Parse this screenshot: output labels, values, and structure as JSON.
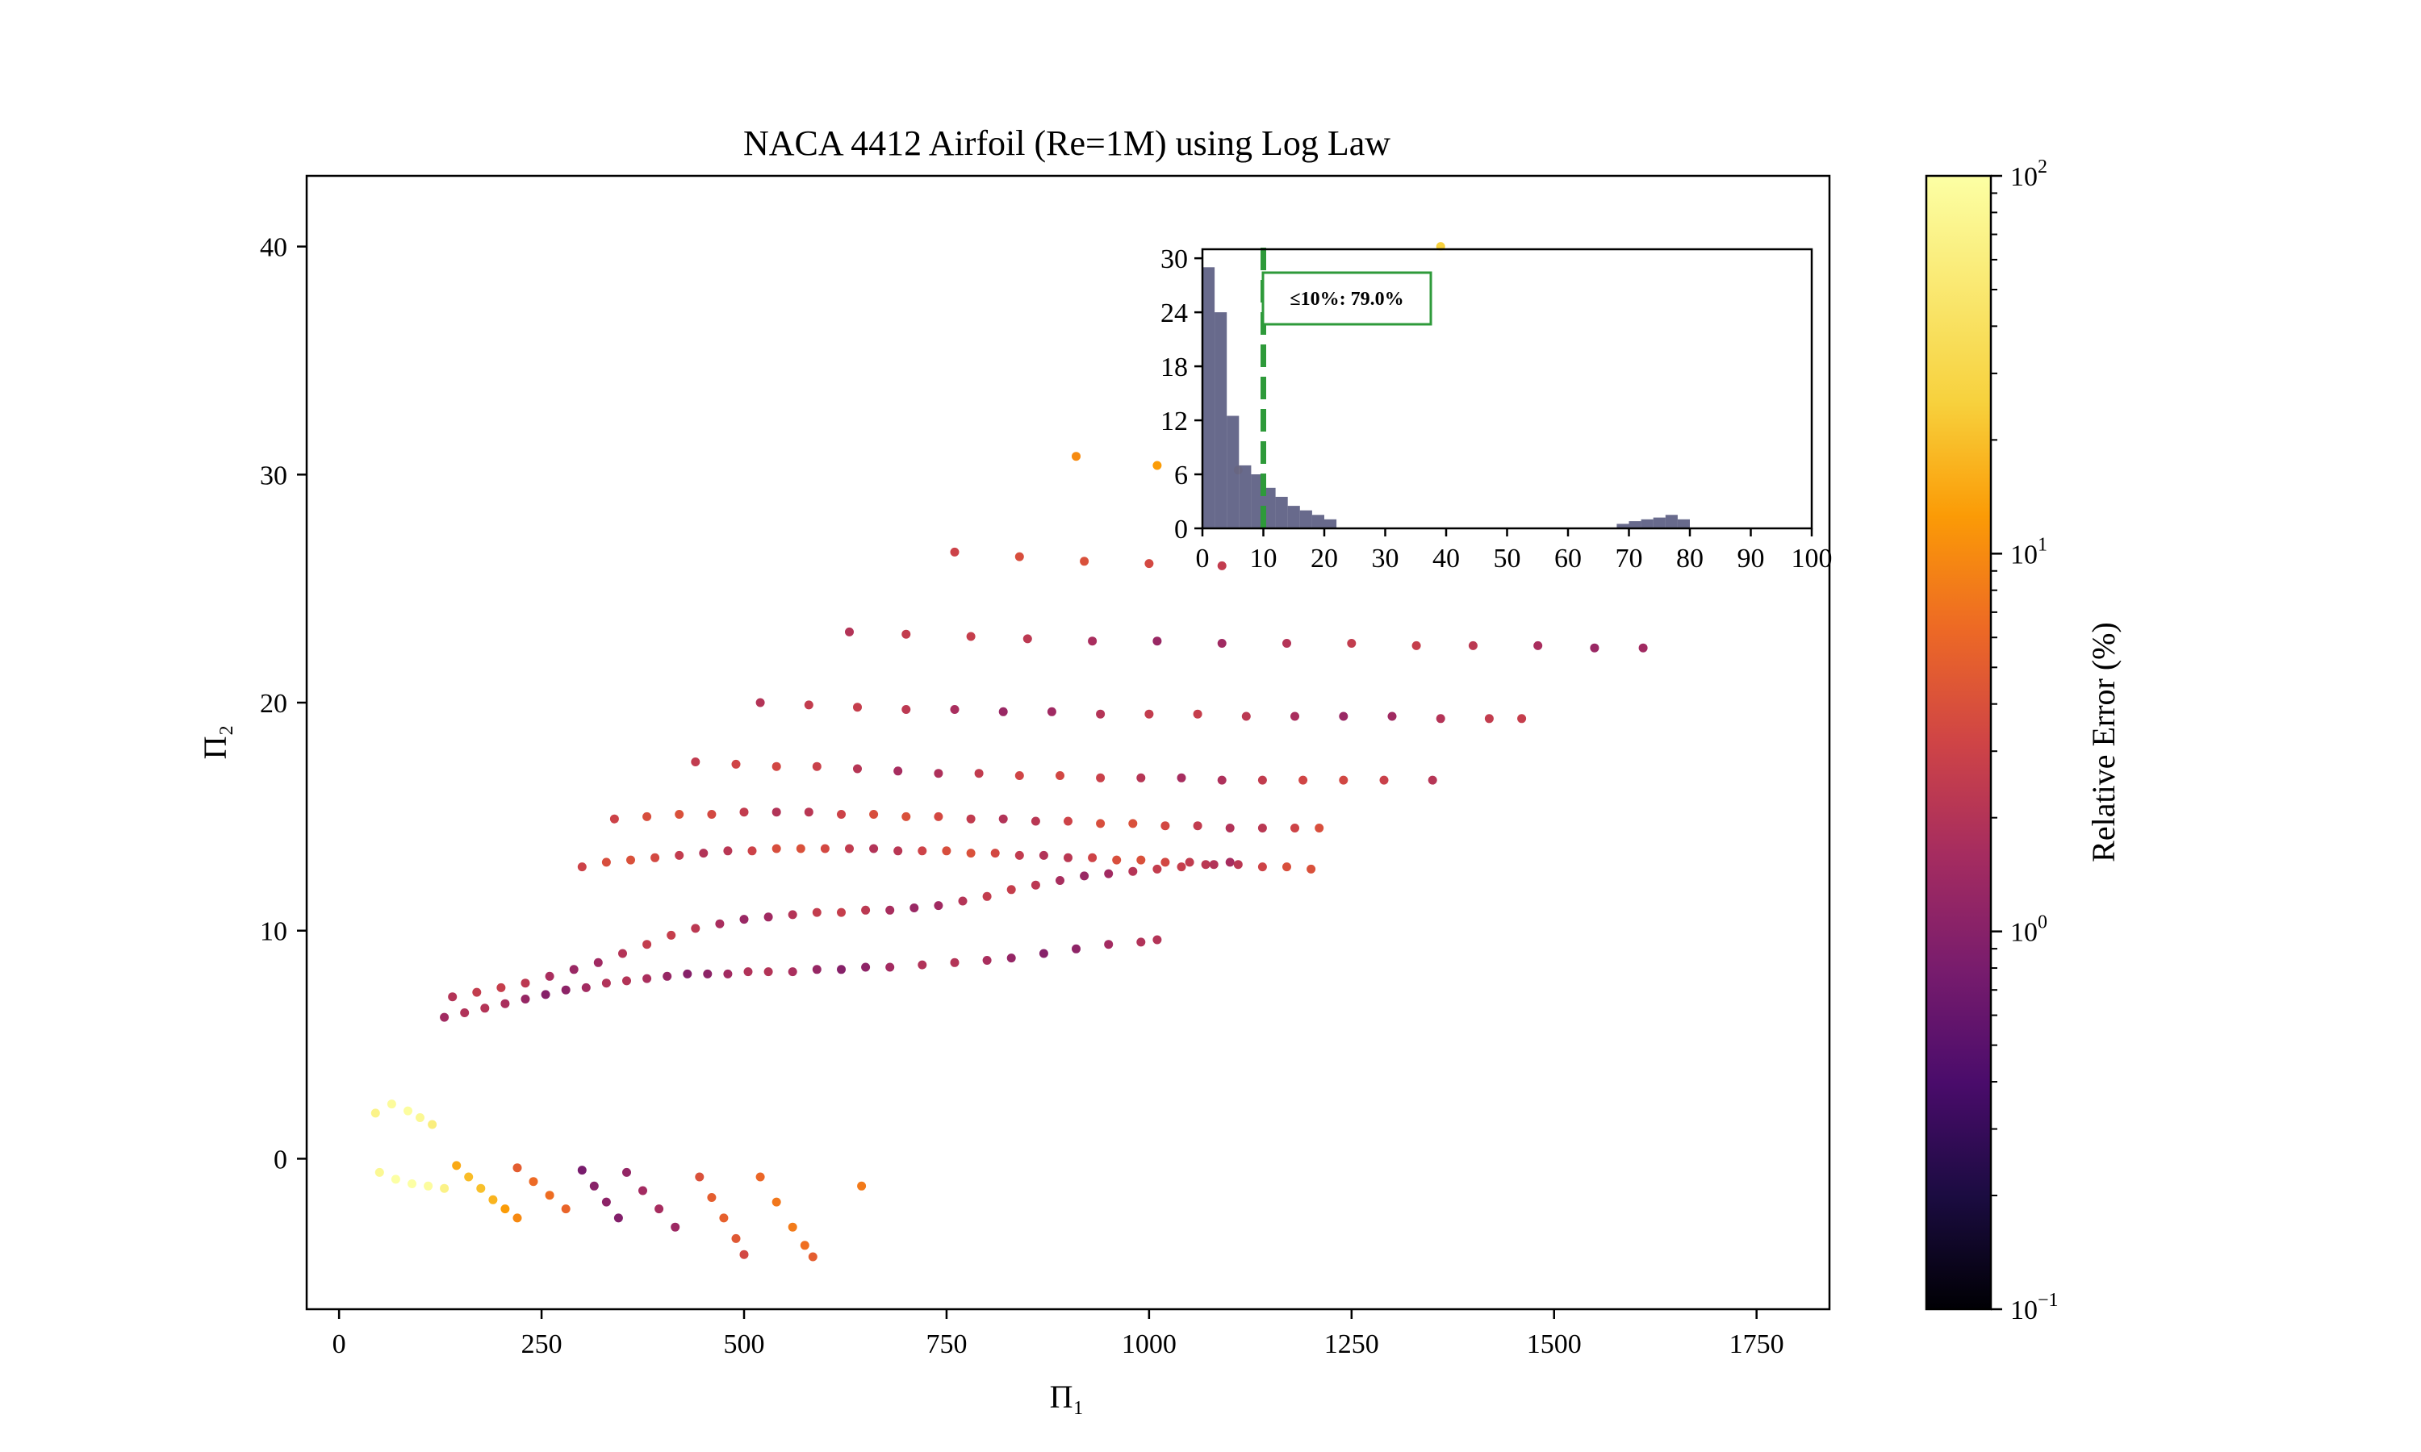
{
  "chart_data": [
    {
      "type": "scatter",
      "title": "NACA 4412 Airfoil (Re=1M) using Log Law",
      "xlabel": "Π₁",
      "ylabel": "Π₂",
      "xlim": [
        -40,
        1840
      ],
      "ylim": [
        -6.6,
        43.1
      ],
      "xticks": [
        0,
        250,
        500,
        750,
        1000,
        1250,
        1500,
        1750
      ],
      "yticks": [
        0,
        10,
        20,
        30,
        40
      ],
      "color_scale": "log",
      "colormap": "inferno",
      "colorbar": {
        "label": "Relative Error (%)",
        "range": [
          0.1,
          100
        ],
        "ticks": [
          {
            "base": "10",
            "exp": "−1",
            "value": 0.1
          },
          {
            "base": "10",
            "exp": "0",
            "value": 1
          },
          {
            "base": "10",
            "exp": "1",
            "value": 10
          },
          {
            "base": "10",
            "exp": "2",
            "value": 100
          }
        ]
      },
      "families": [
        {
          "x": [
            45,
            65,
            85,
            100,
            115
          ],
          "y": [
            2.0,
            2.4,
            2.1,
            1.8,
            1.5
          ],
          "err": 70
        },
        {
          "x": [
            50,
            70,
            90,
            110,
            130
          ],
          "y": [
            -0.6,
            -0.9,
            -1.1,
            -1.2,
            -1.3
          ],
          "err": 80
        },
        {
          "x": [
            145,
            160,
            175,
            190,
            205,
            220
          ],
          "y": [
            -0.3,
            -0.8,
            -1.3,
            -1.8,
            -2.2,
            -2.6
          ],
          "err": 15
        },
        {
          "x": [
            220,
            240,
            260,
            280
          ],
          "y": [
            -0.4,
            -1.0,
            -1.6,
            -2.2
          ],
          "err": 5
        },
        {
          "x": [
            300,
            315,
            330,
            345
          ],
          "y": [
            -0.5,
            -1.2,
            -1.9,
            -2.6
          ],
          "err": 0.8
        },
        {
          "x": [
            355,
            375,
            395,
            415
          ],
          "y": [
            -0.6,
            -1.4,
            -2.2,
            -3.0
          ],
          "err": 1.2
        },
        {
          "x": [
            445,
            460,
            475,
            490,
            500
          ],
          "y": [
            -0.8,
            -1.7,
            -2.6,
            -3.5,
            -4.2
          ],
          "err": 4
        },
        {
          "x": [
            520,
            540,
            560,
            575,
            585
          ],
          "y": [
            -0.8,
            -1.9,
            -3.0,
            -3.8,
            -4.3
          ],
          "err": 6
        },
        {
          "x": [
            645
          ],
          "y": [
            -1.2
          ],
          "err": 8
        },
        {
          "x": [
            140,
            170,
            200,
            230,
            260,
            290,
            320,
            350,
            380,
            410,
            440,
            470,
            500,
            530,
            560,
            590,
            620,
            650,
            680,
            710,
            740,
            770,
            800,
            830,
            860,
            890,
            920,
            950,
            980,
            1010,
            1040,
            1070,
            1100
          ],
          "y": [
            7.1,
            7.3,
            7.5,
            7.7,
            8.0,
            8.3,
            8.6,
            9.0,
            9.4,
            9.8,
            10.1,
            10.3,
            10.5,
            10.6,
            10.7,
            10.8,
            10.8,
            10.9,
            10.9,
            11.0,
            11.1,
            11.3,
            11.5,
            11.8,
            12.0,
            12.2,
            12.4,
            12.5,
            12.6,
            12.7,
            12.8,
            12.9,
            13.0
          ],
          "err": 2
        },
        {
          "x": [
            300,
            330,
            360,
            390,
            420,
            450,
            480,
            510,
            540,
            570,
            600,
            630,
            660,
            690,
            720,
            750,
            780,
            810,
            840,
            870,
            900,
            930,
            960,
            990,
            1020,
            1050,
            1080,
            1110,
            1140,
            1170,
            1200
          ],
          "y": [
            12.8,
            13.0,
            13.1,
            13.2,
            13.3,
            13.4,
            13.5,
            13.5,
            13.6,
            13.6,
            13.6,
            13.6,
            13.6,
            13.5,
            13.5,
            13.5,
            13.4,
            13.4,
            13.3,
            13.3,
            13.2,
            13.2,
            13.1,
            13.1,
            13.0,
            13.0,
            12.9,
            12.9,
            12.8,
            12.8,
            12.7
          ],
          "err": 3
        },
        {
          "x": [
            340,
            380,
            420,
            460,
            500,
            540,
            580,
            620,
            660,
            700,
            740,
            780,
            820,
            860,
            900,
            940,
            980,
            1020,
            1060,
            1100,
            1140,
            1180,
            1210
          ],
          "y": [
            14.9,
            15.0,
            15.1,
            15.1,
            15.2,
            15.2,
            15.2,
            15.1,
            15.1,
            15.0,
            15.0,
            14.9,
            14.9,
            14.8,
            14.8,
            14.7,
            14.7,
            14.6,
            14.6,
            14.5,
            14.5,
            14.5,
            14.5
          ],
          "err": 3
        },
        {
          "x": [
            440,
            490,
            540,
            590,
            640,
            690,
            740,
            790,
            840,
            890,
            940,
            990,
            1040,
            1090,
            1140,
            1190,
            1240,
            1290,
            1350
          ],
          "y": [
            17.4,
            17.3,
            17.2,
            17.2,
            17.1,
            17.0,
            16.9,
            16.9,
            16.8,
            16.8,
            16.7,
            16.7,
            16.7,
            16.6,
            16.6,
            16.6,
            16.6,
            16.6,
            16.6
          ],
          "err": 2.5
        },
        {
          "x": [
            520,
            580,
            640,
            700,
            760,
            820,
            880,
            940,
            1000,
            1060,
            1120,
            1180,
            1240,
            1300,
            1360,
            1420,
            1460
          ],
          "y": [
            20.0,
            19.9,
            19.8,
            19.7,
            19.7,
            19.6,
            19.6,
            19.5,
            19.5,
            19.5,
            19.4,
            19.4,
            19.4,
            19.4,
            19.3,
            19.3,
            19.3
          ],
          "err": 2
        },
        {
          "x": [
            630,
            700,
            780,
            850,
            930,
            1010,
            1090,
            1170,
            1250,
            1330,
            1400,
            1480,
            1550,
            1610
          ],
          "y": [
            23.1,
            23.0,
            22.9,
            22.8,
            22.7,
            22.7,
            22.6,
            22.6,
            22.6,
            22.5,
            22.5,
            22.5,
            22.4,
            22.4
          ],
          "err": 2
        },
        {
          "x": [
            760,
            840,
            920,
            1000,
            1090
          ],
          "y": [
            26.6,
            26.4,
            26.2,
            26.1,
            26.0
          ],
          "err": 3
        },
        {
          "x": [
            910,
            1010,
            1110
          ],
          "y": [
            30.8,
            30.4,
            30.2
          ],
          "err": 10
        },
        {
          "x": [
            1360
          ],
          "y": [
            40.0
          ],
          "err": 25
        },
        {
          "x": [
            130,
            155,
            180,
            205,
            230,
            255,
            280,
            305,
            330,
            355,
            380,
            405,
            430,
            455,
            480,
            505,
            530,
            560,
            590,
            620,
            650,
            680,
            720,
            760,
            800,
            830,
            870,
            910,
            950,
            990,
            1010
          ],
          "y": [
            6.2,
            6.4,
            6.6,
            6.8,
            7.0,
            7.2,
            7.4,
            7.5,
            7.7,
            7.8,
            7.9,
            8.0,
            8.1,
            8.1,
            8.1,
            8.2,
            8.2,
            8.2,
            8.3,
            8.3,
            8.4,
            8.4,
            8.5,
            8.6,
            8.7,
            8.8,
            9.0,
            9.2,
            9.4,
            9.5,
            9.6
          ],
          "err": 1.5
        }
      ],
      "colorless_highlights": [],
      "inset": {
        "type": "bar",
        "xlim": [
          0,
          100
        ],
        "ylim": [
          0,
          31
        ],
        "xticks": [
          0,
          10,
          20,
          30,
          40,
          50,
          60,
          70,
          80,
          90,
          100
        ],
        "yticks": [
          0,
          6,
          12,
          18,
          24,
          30
        ],
        "bin_width": 2,
        "bins_start": [
          0,
          2,
          4,
          6,
          8,
          10,
          12,
          14,
          16,
          18,
          20,
          68,
          70,
          72,
          74,
          76,
          78
        ],
        "counts": [
          29,
          24,
          12.5,
          7,
          6,
          4.5,
          3.5,
          2.5,
          2,
          1.5,
          1,
          0.5,
          0.8,
          1,
          1.2,
          1.5,
          1
        ],
        "threshold": 10,
        "annotation": "≤10%: 79.0%"
      }
    }
  ]
}
